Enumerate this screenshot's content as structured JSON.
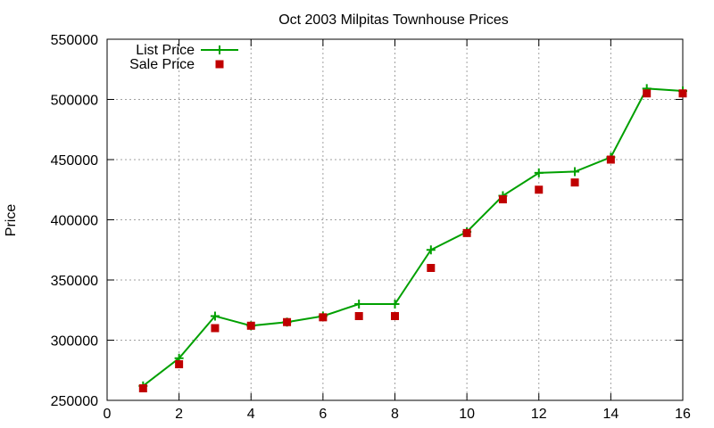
{
  "chart_data": {
    "type": "line",
    "title": "Oct 2003 Milpitas Townhouse Prices",
    "xlabel": "",
    "ylabel": "Price",
    "xlim": [
      0,
      16
    ],
    "ylim": [
      250000,
      550000
    ],
    "xticks": [
      0,
      2,
      4,
      6,
      8,
      10,
      12,
      14,
      16
    ],
    "yticks": [
      250000,
      300000,
      350000,
      400000,
      450000,
      500000,
      550000
    ],
    "grid": true,
    "legend_position": "top-left",
    "series": [
      {
        "name": "List Price",
        "style": "linespoints",
        "marker": "plus",
        "color": "#00a000",
        "x": [
          1,
          2,
          3,
          4,
          5,
          6,
          7,
          8,
          9,
          10,
          11,
          12,
          13,
          14,
          15,
          16
        ],
        "y": [
          262000,
          285000,
          320000,
          312000,
          315000,
          320000,
          330000,
          330000,
          375000,
          390000,
          420000,
          439000,
          440000,
          452000,
          509000,
          507000
        ]
      },
      {
        "name": "Sale Price",
        "style": "points",
        "marker": "square",
        "color": "#c00000",
        "x": [
          1,
          2,
          3,
          4,
          5,
          6,
          7,
          8,
          9,
          10,
          11,
          12,
          13,
          14,
          15,
          16
        ],
        "y": [
          260000,
          280000,
          310000,
          312000,
          315000,
          319000,
          320000,
          320000,
          360000,
          389000,
          417000,
          425000,
          431000,
          450000,
          505000,
          505000
        ]
      }
    ]
  }
}
